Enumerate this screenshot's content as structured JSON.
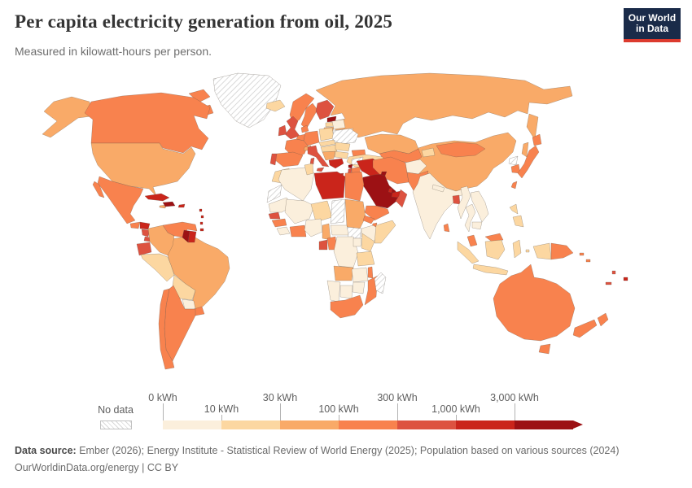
{
  "header": {
    "title": "Per capita electricity generation from oil, 2025",
    "subtitle": "Measured in kilowatt-hours per person.",
    "logo": {
      "line1": "Our World",
      "line2": "in Data",
      "bg": "#1a2b49",
      "accent": "#dc3a2e"
    }
  },
  "legend": {
    "no_data_label": "No data",
    "ticks": [
      "0 kWh",
      "10 kWh",
      "30 kWh",
      "100 kWh",
      "300 kWh",
      "1,000 kWh",
      "3,000 kWh"
    ]
  },
  "footer": {
    "source_label": "Data source:",
    "source_text": " Ember (2026); Energy Institute - Statistical Review of World Energy (2025); Population based on various sources (2024)",
    "link_text": "OurWorldinData.org/energy",
    "license_sep": " | ",
    "license": "CC BY"
  },
  "chart_data": {
    "type": "choropleth-map",
    "title": "Per capita electricity generation from oil, 2025",
    "unit": "kilowatt-hours per person",
    "year": "2025",
    "legend_ticks": [
      "0 kWh",
      "10 kWh",
      "30 kWh",
      "100 kWh",
      "300 kWh",
      "1,000 kWh",
      "3,000 kWh"
    ],
    "bin_order": [
      "b1",
      "b2",
      "b3",
      "b4",
      "b5",
      "b6",
      "b7"
    ],
    "bins": {
      "b1": {
        "range": "0-10 kWh",
        "color": "#fbefdc"
      },
      "b2": {
        "range": "10-30 kWh",
        "color": "#fcd7a1"
      },
      "b3": {
        "range": "30-100 kWh",
        "color": "#f9aa68"
      },
      "b4": {
        "range": "100-300 kWh",
        "color": "#f8824e"
      },
      "b5": {
        "range": "300-1,000 kWh",
        "color": "#dd5240"
      },
      "b6": {
        "range": "1,000-3,000 kWh",
        "color": "#ca251b"
      },
      "b7": {
        "range": "3,000+ kWh",
        "color": "#9c1114"
      }
    },
    "no_data": {
      "label": "No data",
      "pattern": "diagonal-hatch"
    },
    "countries": {
      "Canada": "b4",
      "United States": "b3",
      "Greenland": "no-data",
      "Mexico": "b4",
      "Guatemala": "b4",
      "Honduras": "b6",
      "Nicaragua": "b5",
      "Panama": "b5",
      "Cuba": "b6",
      "Jamaica": "b3",
      "Dominican Republic": "b7",
      "Puerto Rico": "b6",
      "Dominica": "b6",
      "Saint Lucia": "b6",
      "Barbados": "b6",
      "Trinidad and Tobago": "b6",
      "Venezuela": "b4",
      "Guyana": "b7",
      "Suriname": "b6",
      "Colombia": "b3",
      "Ecuador": "b5",
      "Peru": "b2",
      "Brazil": "b3",
      "Bolivia": "b2",
      "Paraguay": "b1",
      "Uruguay": "b4",
      "Argentina": "b4",
      "Chile": "b4",
      "Iceland": "b2",
      "Norway": "b4",
      "Sweden": "b4",
      "Finland": "b5",
      "Estonia": "b7",
      "Latvia": "b2",
      "Lithuania": "b3",
      "Denmark": "b4",
      "United Kingdom": "b5",
      "Ireland": "b5",
      "Netherlands": "b4",
      "Germany": "b4",
      "Poland": "b2",
      "Belarus": "b1",
      "Ukraine": "no-data",
      "Czechia": "b2",
      "France": "b4",
      "Spain": "b4",
      "Portugal": "b5",
      "Switzerland": "b3",
      "Hungary": "b2",
      "Italy": "b5",
      "Croatia": "b3",
      "Romania": "b2",
      "Bulgaria": "b2",
      "Greece": "b6",
      "Turkey": "b2",
      "Cyprus": "b7",
      "Russia": "b3",
      "Kazakhstan": "b3",
      "Georgia": "b4",
      "Turkmenistan": "b4",
      "Kyrgyzstan": "b2",
      "Afghanistan": "b1",
      "Pakistan": "b4",
      "Iran": "b4",
      "Iraq": "b6",
      "Syria": "no-data",
      "Lebanon": "b7",
      "Israel": "b5",
      "Jordan": "b4",
      "Saudi Arabia": "b7",
      "Kuwait": "b7",
      "Qatar": "b6",
      "United Arab Emirates": "b6",
      "Oman": "b5",
      "Yemen": "b4",
      "Morocco": "b2",
      "Western Sahara": "no-data",
      "Algeria": "b1",
      "Tunisia": "b2",
      "Libya": "b6",
      "Egypt": "b4",
      "Mauritania": "b1",
      "Mali": "b1",
      "Niger": "b2",
      "Chad": "no-data",
      "Sudan": "b3",
      "South Sudan": "no-data",
      "Eritrea": "b4",
      "Djibouti": "b4",
      "Ethiopia": "b1",
      "Somalia": "b2",
      "Senegal": "b5",
      "Guinea": "b4",
      "Liberia": "b1",
      "Ghana": "b4",
      "Nigeria": "b1",
      "Cameroon": "b3",
      "Central African Republic": "b1",
      "Gabon": "b5",
      "Congo": "b4",
      "Democratic Republic of Congo": "b1",
      "Uganda": "b1",
      "Kenya": "b2",
      "Tanzania": "b2",
      "Angola": "b3",
      "Zambia": "b1",
      "Malawi": "b4",
      "Mozambique": "b4",
      "Zimbabwe": "b1",
      "Botswana": "b1",
      "Namibia": "b1",
      "South Africa": "b4",
      "Madagascar": "no-data",
      "India": "b1",
      "Nepal": "b1",
      "Bangladesh": "b5",
      "Sri Lanka": "b4",
      "Myanmar": "b1",
      "Thailand": "b1",
      "Vietnam": "b1",
      "Cambodia": "b1",
      "Malaysia": "b4",
      "Indonesia": "b2",
      "Philippines": "b2",
      "China": "b3",
      "Mongolia": "b4",
      "North Korea": "no-data",
      "South Korea": "b4",
      "Japan": "b4",
      "Taiwan": "b4",
      "Papua New Guinea": "b4",
      "Solomon Islands": "b4",
      "Vanuatu": "b5",
      "Fiji": "b6",
      "New Caledonia": "b5",
      "Australia": "b4",
      "New Zealand": "b4"
    }
  }
}
